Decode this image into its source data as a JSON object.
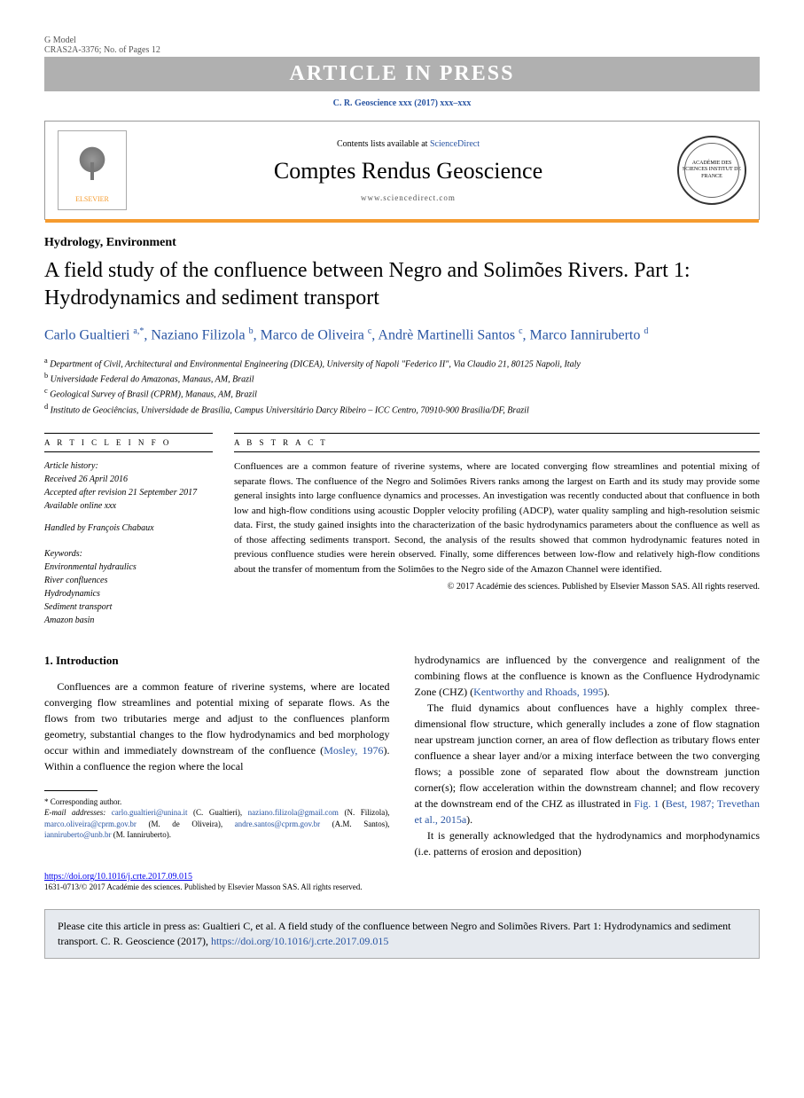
{
  "header": {
    "model_label": "G Model",
    "model_id": "CRAS2A-3376; No. of Pages 12",
    "banner": "ARTICLE IN PRESS",
    "citation_top": "C. R. Geoscience xxx (2017) xxx–xxx"
  },
  "journal_box": {
    "contents_prefix": "Contents lists available at ",
    "contents_link": "ScienceDirect",
    "journal_title": "Comptes Rendus Geoscience",
    "journal_url": "www.sciencedirect.com",
    "elsevier_label": "ELSEVIER",
    "academie_label": "ACADÉMIE DES SCIENCES INSTITUT DE FRANCE"
  },
  "article": {
    "section": "Hydrology, Environment",
    "title": "A field study of the confluence between Negro and Solimões Rivers. Part 1: Hydrodynamics and sediment transport",
    "authors_html": "Carlo Gualtieri <sup>a,*</sup>, Naziano Filizola <sup>b</sup>, Marco de Oliveira <sup>c</sup>, Andrè Martinelli Santos <sup>c</sup>, Marco Ianniruberto <sup>d</sup>",
    "affiliations": {
      "a": "Department of Civil, Architectural and Environmental Engineering (DICEA), University of Napoli \"Federico II\", Via Claudio 21, 80125 Napoli, Italy",
      "b": "Universidade Federal do Amazonas, Manaus, AM, Brazil",
      "c": "Geological Survey of Brasil (CPRM), Manaus, AM, Brazil",
      "d": "Instituto de Geociências, Universidade de Brasília, Campus Universitário Darcy Ribeiro – ICC Centro, 70910-900 Brasília/DF, Brazil"
    }
  },
  "info": {
    "header": "A R T I C L E   I N F O",
    "history_label": "Article history:",
    "received": "Received 26 April 2016",
    "accepted": "Accepted after revision 21 September 2017",
    "online": "Available online xxx",
    "handled": "Handled by François Chabaux",
    "keywords_label": "Keywords:",
    "keywords": [
      "Environmental hydraulics",
      "River confluences",
      "Hydrodynamics",
      "Sediment transport",
      "Amazon basin"
    ]
  },
  "abstract": {
    "header": "A B S T R A C T",
    "body": "Confluences are a common feature of riverine systems, where are located converging flow streamlines and potential mixing of separate flows. The confluence of the Negro and Solimões Rivers ranks among the largest on Earth and its study may provide some general insights into large confluence dynamics and processes. An investigation was recently conducted about that confluence in both low and high-flow conditions using acoustic Doppler velocity profiling (ADCP), water quality sampling and high-resolution seismic data. First, the study gained insights into the characterization of the basic hydrodynamics parameters about the confluence as well as of those affecting sediments transport. Second, the analysis of the results showed that common hydrodynamic features noted in previous confluence studies were herein observed. Finally, some differences between low-flow and relatively high-flow conditions about the transfer of momentum from the Solimões to the Negro side of the Amazon Channel were identified.",
    "copyright": "© 2017 Académie des sciences. Published by Elsevier Masson SAS. All rights reserved."
  },
  "body": {
    "intro_heading": "1. Introduction",
    "col1_p1a": "Confluences are a common feature of riverine systems, where are located converging flow streamlines and potential mixing of separate flows. As the flows from two tributaries merge and adjust to the confluences planform geometry, substantial changes to the flow hydrodynamics and bed morphology occur within and immediately downstream of the confluence (",
    "col1_ref1": "Mosley, 1976",
    "col1_p1b": "). Within a confluence the region where the local",
    "col2_p1a": "hydrodynamics are influenced by the convergence and realignment of the combining flows at the confluence is known as the Confluence Hydrodynamic Zone (CHZ) (",
    "col2_ref1": "Kentworthy and Rhoads, 1995",
    "col2_p1b": ").",
    "col2_p2a": "The fluid dynamics about confluences have a highly complex three-dimensional flow structure, which generally includes a zone of flow stagnation near upstream junction corner, an area of flow deflection as tributary flows enter confluence a shear layer and/or a mixing interface between the two converging flows; a possible zone of separated flow about the downstream junction corner(s); flow acceleration within the downstream channel; and flow recovery at the downstream end of the CHZ as illustrated in ",
    "col2_fig": "Fig. 1",
    "col2_p2b": " (",
    "col2_ref2": "Best, 1987; Trevethan et al., 2015a",
    "col2_p2c": ").",
    "col2_p3": "It is generally acknowledged that the hydrodynamics and morphodynamics (i.e. patterns of erosion and deposition)"
  },
  "footnotes": {
    "corresponding": "* Corresponding author.",
    "email_label": "E-mail addresses:",
    "emails": [
      {
        "addr": "carlo.gualtieri@unina.it",
        "who": "(C. Gualtieri)"
      },
      {
        "addr": "naziano.filizola@gmail.com",
        "who": "(N. Filizola)"
      },
      {
        "addr": "marco.oliveira@cprm.gov.br",
        "who": "(M. de Oliveira)"
      },
      {
        "addr": "andre.santos@cprm.gov.br",
        "who": "(A.M. Santos)"
      },
      {
        "addr": "ianniruberto@unb.br",
        "who": "(M. Ianniruberto)"
      }
    ]
  },
  "doi": {
    "url": "https://doi.org/10.1016/j.crte.2017.09.015",
    "issn_line": "1631-0713/© 2017 Académie des sciences. Published by Elsevier Masson SAS. All rights reserved."
  },
  "cite_box": {
    "text_a": "Please cite this article in press as: Gualtieri C, et al. A field study of the confluence between Negro and Solimões Rivers. Part 1: Hydrodynamics and sediment transport. C. R. Geoscience (2017), ",
    "link": "https://doi.org/10.1016/j.crte.2017.09.015"
  },
  "colors": {
    "link": "#2955a3",
    "banner_bg": "#b0b0b0",
    "orange": "#f59b2e",
    "citebox_bg": "#e6eaef"
  }
}
